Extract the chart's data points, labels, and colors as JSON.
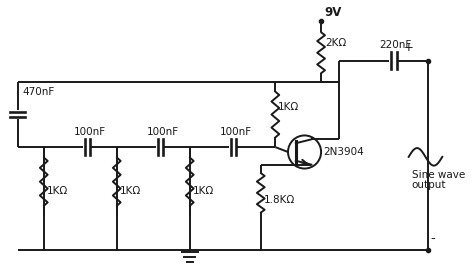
{
  "bg_color": "#ffffff",
  "line_color": "#1a1a1a",
  "line_width": 1.4,
  "font_size": 7.5,
  "components": {
    "supply_voltage": "9V",
    "resistor_top": "2KΩ",
    "capacitor_left": "470nF",
    "cap1_label": "100nF",
    "cap2_label": "100nF",
    "cap3_label": "100nF",
    "res1_label": "1KΩ",
    "res2_label": "1KΩ",
    "res3_label": "1KΩ",
    "res4_label": "1KΩ",
    "res5_label": "1.8KΩ",
    "transistor_label": "2N3904",
    "cap_out_label": "220nF",
    "output_label_1": "Sine wave",
    "output_label_2": "output"
  }
}
